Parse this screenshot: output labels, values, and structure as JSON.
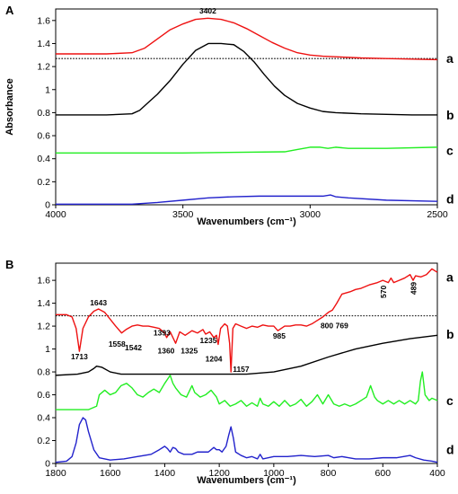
{
  "chart_data": [
    {
      "type": "line",
      "panel_label": "A",
      "xlabel": "Wavenumbers (cm⁻¹)",
      "ylabel": "Absorbance",
      "xlim": [
        4000,
        2500
      ],
      "ylim": [
        0,
        1.7
      ],
      "x_ticks": [
        "4000",
        "3500",
        "3000",
        "2500"
      ],
      "y_ticks": [
        "0",
        "0.2",
        "0.4",
        "0.6",
        "0.8",
        "1",
        "1.2",
        "1.4",
        "1.6"
      ],
      "reference_line_y": 1.27,
      "series": [
        {
          "label": "a",
          "color": "#ee1111",
          "x": [
            4000,
            3800,
            3700,
            3650,
            3600,
            3550,
            3500,
            3450,
            3402,
            3350,
            3300,
            3250,
            3200,
            3150,
            3100,
            3050,
            3000,
            2950,
            2900,
            2850,
            2800,
            2700,
            2600,
            2500
          ],
          "y": [
            1.31,
            1.31,
            1.32,
            1.36,
            1.44,
            1.52,
            1.57,
            1.61,
            1.62,
            1.61,
            1.58,
            1.53,
            1.47,
            1.41,
            1.36,
            1.32,
            1.3,
            1.29,
            1.285,
            1.28,
            1.275,
            1.27,
            1.265,
            1.26
          ]
        },
        {
          "label": "b",
          "color": "#000000",
          "x": [
            4000,
            3800,
            3700,
            3670,
            3640,
            3600,
            3550,
            3500,
            3450,
            3400,
            3350,
            3300,
            3260,
            3220,
            3180,
            3140,
            3100,
            3050,
            3000,
            2950,
            2900,
            2800,
            2700,
            2600,
            2500
          ],
          "y": [
            0.78,
            0.78,
            0.79,
            0.82,
            0.88,
            0.96,
            1.08,
            1.22,
            1.34,
            1.4,
            1.4,
            1.39,
            1.33,
            1.24,
            1.13,
            1.03,
            0.95,
            0.88,
            0.84,
            0.81,
            0.8,
            0.79,
            0.785,
            0.78,
            0.78
          ]
        },
        {
          "label": "c",
          "color": "#22ee22",
          "x": [
            4000,
            3500,
            3100,
            3050,
            3000,
            2960,
            2930,
            2900,
            2850,
            2700,
            2500
          ],
          "y": [
            0.45,
            0.45,
            0.46,
            0.48,
            0.5,
            0.5,
            0.49,
            0.5,
            0.49,
            0.49,
            0.5
          ]
        },
        {
          "label": "d",
          "color": "#2222cc",
          "x": [
            4000,
            3700,
            3600,
            3500,
            3400,
            3300,
            3200,
            3100,
            3000,
            2950,
            2920,
            2900,
            2850,
            2700,
            2500
          ],
          "y": [
            0.005,
            0.005,
            0.02,
            0.04,
            0.06,
            0.07,
            0.075,
            0.075,
            0.075,
            0.075,
            0.085,
            0.07,
            0.06,
            0.04,
            0.03
          ]
        }
      ],
      "annotations": [
        {
          "text": "3402",
          "x": 3402,
          "y": 1.66
        }
      ]
    },
    {
      "type": "line",
      "panel_label": "B",
      "xlabel": "Wavenumbers (cm⁻¹)",
      "ylabel": "",
      "xlim": [
        1800,
        400
      ],
      "ylim": [
        0,
        1.75
      ],
      "x_ticks": [
        "1800",
        "1600",
        "1400",
        "1200",
        "1000",
        "800",
        "600",
        "400"
      ],
      "y_ticks": [
        "0",
        "0.2",
        "0.4",
        "0.6",
        "0.8",
        "1",
        "1.2",
        "1.4",
        "1.6"
      ],
      "reference_line_y": 1.29,
      "series": [
        {
          "label": "a",
          "color": "#ee1111",
          "x": [
            1800,
            1760,
            1740,
            1725,
            1713,
            1700,
            1680,
            1660,
            1643,
            1620,
            1600,
            1580,
            1558,
            1542,
            1520,
            1500,
            1480,
            1460,
            1440,
            1420,
            1400,
            1393,
            1380,
            1370,
            1360,
            1345,
            1325,
            1300,
            1280,
            1260,
            1250,
            1235,
            1220,
            1210,
            1204,
            1195,
            1180,
            1170,
            1162,
            1157,
            1150,
            1140,
            1120,
            1100,
            1080,
            1060,
            1040,
            1020,
            1000,
            985,
            960,
            940,
            920,
            900,
            880,
            860,
            840,
            820,
            800,
            785,
            769,
            750,
            720,
            700,
            680,
            650,
            620,
            600,
            580,
            570,
            560,
            540,
            520,
            500,
            489,
            480,
            460,
            440,
            420,
            400
          ],
          "y": [
            1.3,
            1.3,
            1.28,
            1.18,
            0.98,
            1.18,
            1.28,
            1.33,
            1.35,
            1.32,
            1.26,
            1.2,
            1.14,
            1.17,
            1.2,
            1.21,
            1.2,
            1.2,
            1.19,
            1.18,
            1.14,
            1.1,
            1.15,
            1.1,
            1.05,
            1.15,
            1.12,
            1.16,
            1.14,
            1.17,
            1.13,
            1.15,
            1.1,
            1.12,
            1.04,
            1.18,
            1.22,
            1.2,
            1.05,
            0.8,
            1.18,
            1.22,
            1.2,
            1.18,
            1.2,
            1.19,
            1.21,
            1.2,
            1.2,
            1.16,
            1.2,
            1.2,
            1.21,
            1.21,
            1.2,
            1.22,
            1.25,
            1.28,
            1.32,
            1.34,
            1.4,
            1.48,
            1.5,
            1.52,
            1.53,
            1.56,
            1.58,
            1.6,
            1.58,
            1.62,
            1.58,
            1.6,
            1.62,
            1.65,
            1.6,
            1.64,
            1.63,
            1.65,
            1.7,
            1.67
          ]
        },
        {
          "label": "b",
          "color": "#000000",
          "x": [
            1800,
            1720,
            1680,
            1660,
            1650,
            1630,
            1600,
            1560,
            1500,
            1300,
            1100,
            1000,
            900,
            800,
            700,
            600,
            500,
            400
          ],
          "y": [
            0.77,
            0.78,
            0.8,
            0.83,
            0.85,
            0.84,
            0.8,
            0.78,
            0.78,
            0.78,
            0.78,
            0.8,
            0.85,
            0.93,
            1.0,
            1.05,
            1.09,
            1.12
          ]
        },
        {
          "label": "c",
          "color": "#22ee22",
          "x": [
            1800,
            1680,
            1650,
            1640,
            1620,
            1600,
            1580,
            1560,
            1540,
            1520,
            1500,
            1480,
            1460,
            1440,
            1420,
            1400,
            1380,
            1370,
            1360,
            1340,
            1320,
            1300,
            1290,
            1270,
            1250,
            1230,
            1210,
            1200,
            1180,
            1160,
            1140,
            1120,
            1100,
            1080,
            1060,
            1050,
            1040,
            1020,
            1000,
            980,
            960,
            940,
            920,
            900,
            880,
            860,
            840,
            820,
            800,
            780,
            760,
            740,
            720,
            700,
            680,
            660,
            645,
            630,
            620,
            600,
            580,
            560,
            540,
            520,
            500,
            480,
            470,
            462,
            455,
            445,
            430,
            420,
            400
          ],
          "y": [
            0.47,
            0.47,
            0.5,
            0.6,
            0.64,
            0.6,
            0.62,
            0.68,
            0.7,
            0.66,
            0.6,
            0.58,
            0.62,
            0.65,
            0.62,
            0.7,
            0.77,
            0.7,
            0.66,
            0.6,
            0.58,
            0.68,
            0.62,
            0.58,
            0.6,
            0.64,
            0.58,
            0.52,
            0.55,
            0.5,
            0.52,
            0.55,
            0.5,
            0.53,
            0.5,
            0.57,
            0.52,
            0.5,
            0.54,
            0.5,
            0.55,
            0.5,
            0.52,
            0.56,
            0.5,
            0.54,
            0.6,
            0.52,
            0.6,
            0.52,
            0.5,
            0.52,
            0.5,
            0.52,
            0.55,
            0.58,
            0.68,
            0.58,
            0.55,
            0.52,
            0.55,
            0.52,
            0.55,
            0.52,
            0.55,
            0.52,
            0.55,
            0.72,
            0.8,
            0.6,
            0.55,
            0.57,
            0.55
          ]
        },
        {
          "label": "d",
          "color": "#2222cc",
          "x": [
            1800,
            1760,
            1740,
            1725,
            1713,
            1700,
            1690,
            1680,
            1660,
            1640,
            1600,
            1550,
            1500,
            1450,
            1420,
            1400,
            1390,
            1380,
            1370,
            1360,
            1350,
            1330,
            1300,
            1280,
            1260,
            1240,
            1220,
            1210,
            1200,
            1190,
            1175,
            1165,
            1157,
            1148,
            1140,
            1120,
            1100,
            1080,
            1060,
            1050,
            1040,
            1000,
            950,
            900,
            850,
            800,
            780,
            750,
            700,
            650,
            600,
            550,
            500,
            480,
            450,
            420,
            400
          ],
          "y": [
            0.01,
            0.02,
            0.06,
            0.18,
            0.34,
            0.4,
            0.38,
            0.28,
            0.12,
            0.05,
            0.03,
            0.04,
            0.06,
            0.08,
            0.12,
            0.15,
            0.13,
            0.1,
            0.14,
            0.13,
            0.1,
            0.08,
            0.08,
            0.1,
            0.1,
            0.1,
            0.14,
            0.12,
            0.12,
            0.1,
            0.15,
            0.25,
            0.32,
            0.22,
            0.1,
            0.07,
            0.05,
            0.06,
            0.04,
            0.08,
            0.04,
            0.06,
            0.06,
            0.07,
            0.06,
            0.07,
            0.05,
            0.06,
            0.04,
            0.04,
            0.05,
            0.05,
            0.07,
            0.05,
            0.03,
            0.02,
            0.01
          ]
        }
      ],
      "annotations": [
        {
          "text": "1643",
          "x": 1643,
          "y": 1.38
        },
        {
          "text": "1713",
          "x": 1713,
          "y": 0.91
        },
        {
          "text": "1558",
          "x": 1575,
          "y": 1.02
        },
        {
          "text": "1542",
          "x": 1515,
          "y": 0.99
        },
        {
          "text": "1393",
          "x": 1410,
          "y": 1.12
        },
        {
          "text": "1360",
          "x": 1395,
          "y": 0.96
        },
        {
          "text": "1325",
          "x": 1310,
          "y": 0.96
        },
        {
          "text": "1235",
          "x": 1240,
          "y": 1.05
        },
        {
          "text": "1204",
          "x": 1220,
          "y": 0.89
        },
        {
          "text": "1157",
          "x": 1120,
          "y": 0.8
        },
        {
          "text": "985",
          "x": 980,
          "y": 1.09
        },
        {
          "text": "800",
          "x": 805,
          "y": 1.18
        },
        {
          "text": "769",
          "x": 750,
          "y": 1.18
        },
        {
          "text": "570",
          "x": 588,
          "y": 1.5
        },
        {
          "text": "489",
          "x": 478,
          "y": 1.53
        }
      ]
    }
  ]
}
